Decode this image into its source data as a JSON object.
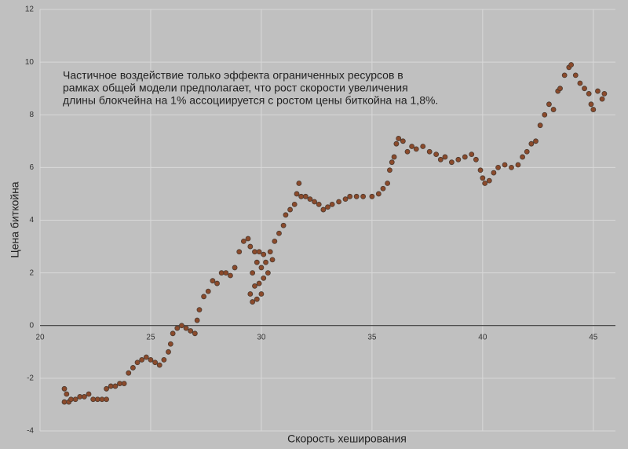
{
  "chart_data": {
    "type": "scatter",
    "annotation": [
      "Частичное воздействие только эффекта ограниченных ресурсов в",
      "рамках общей модели предполагает, что рост скорости увеличения",
      "длины блокчейна на 1% ассоциируется с ростом цены биткойна на 1,8%."
    ],
    "x_label": "Скорость хеширования",
    "y_label": "Цена биткойна",
    "color": "#8b4a2b",
    "xlim": [
      20,
      46
    ],
    "xticks": [
      20,
      25,
      30,
      35,
      40,
      45
    ],
    "ylim": [
      -4,
      12
    ],
    "yticks": [
      -4,
      -2,
      0,
      2,
      4,
      6,
      8,
      10,
      12
    ],
    "grid": true,
    "x": [
      21.1,
      21.1,
      21.2,
      21.3,
      21.4,
      21.6,
      21.8,
      22.0,
      22.2,
      22.4,
      22.6,
      22.8,
      23.0,
      23.0,
      23.2,
      23.4,
      23.6,
      23.8,
      24.0,
      24.2,
      24.4,
      24.6,
      24.8,
      25.0,
      25.2,
      25.4,
      25.6,
      25.8,
      25.9,
      26.0,
      26.2,
      26.4,
      26.6,
      26.8,
      27.0,
      27.1,
      27.2,
      27.4,
      27.6,
      27.8,
      28.0,
      28.2,
      28.4,
      28.6,
      28.8,
      29.0,
      29.2,
      29.4,
      29.5,
      29.5,
      29.6,
      29.6,
      29.7,
      29.7,
      29.8,
      29.8,
      29.9,
      29.9,
      30.0,
      30.0,
      30.1,
      30.1,
      30.2,
      30.3,
      30.4,
      30.5,
      30.6,
      30.8,
      31.0,
      31.1,
      31.3,
      31.5,
      31.6,
      31.7,
      31.8,
      32.0,
      32.2,
      32.4,
      32.6,
      32.8,
      33.0,
      33.2,
      33.5,
      33.8,
      34.0,
      34.3,
      34.6,
      35.0,
      35.3,
      35.5,
      35.7,
      35.8,
      35.9,
      36.0,
      36.1,
      36.2,
      36.4,
      36.6,
      36.8,
      37.0,
      37.3,
      37.6,
      37.9,
      38.1,
      38.3,
      38.6,
      38.9,
      39.2,
      39.5,
      39.7,
      39.9,
      40.0,
      40.1,
      40.3,
      40.5,
      40.7,
      41.0,
      41.3,
      41.6,
      41.8,
      42.0,
      42.2,
      42.4,
      42.6,
      42.8,
      43.0,
      43.2,
      43.4,
      43.5,
      43.7,
      43.9,
      44.0,
      44.2,
      44.4,
      44.6,
      44.8,
      44.9,
      45.0,
      45.2,
      45.4,
      45.5
    ],
    "values": [
      -2.4,
      -2.9,
      -2.6,
      -2.9,
      -2.8,
      -2.8,
      -2.7,
      -2.7,
      -2.6,
      -2.8,
      -2.8,
      -2.8,
      -2.8,
      -2.4,
      -2.3,
      -2.3,
      -2.2,
      -2.2,
      -1.8,
      -1.6,
      -1.4,
      -1.3,
      -1.2,
      -1.3,
      -1.4,
      -1.5,
      -1.3,
      -1.0,
      -0.7,
      -0.3,
      -0.1,
      0.0,
      -0.1,
      -0.2,
      -0.3,
      0.2,
      0.6,
      1.1,
      1.3,
      1.7,
      1.6,
      2.0,
      2.0,
      1.9,
      2.2,
      2.8,
      3.2,
      3.3,
      3.0,
      1.2,
      0.9,
      2.0,
      1.5,
      2.8,
      1.0,
      2.4,
      1.6,
      2.8,
      1.2,
      2.2,
      1.8,
      2.7,
      2.4,
      2.0,
      2.8,
      2.5,
      3.2,
      3.5,
      3.8,
      4.2,
      4.4,
      4.6,
      5.0,
      5.4,
      4.9,
      4.9,
      4.8,
      4.7,
      4.6,
      4.4,
      4.5,
      4.6,
      4.7,
      4.8,
      4.9,
      4.9,
      4.9,
      4.9,
      5.0,
      5.2,
      5.4,
      5.9,
      6.2,
      6.4,
      6.9,
      7.1,
      7.0,
      6.6,
      6.8,
      6.7,
      6.8,
      6.6,
      6.5,
      6.3,
      6.4,
      6.2,
      6.3,
      6.4,
      6.5,
      6.3,
      5.9,
      5.6,
      5.4,
      5.5,
      5.8,
      6.0,
      6.1,
      6.0,
      6.1,
      6.4,
      6.6,
      6.9,
      7.0,
      7.6,
      8.0,
      8.4,
      8.2,
      8.9,
      9.0,
      9.5,
      9.8,
      9.9,
      9.5,
      9.2,
      9.0,
      8.8,
      8.4,
      8.2,
      8.9,
      8.6,
      8.8
    ]
  }
}
